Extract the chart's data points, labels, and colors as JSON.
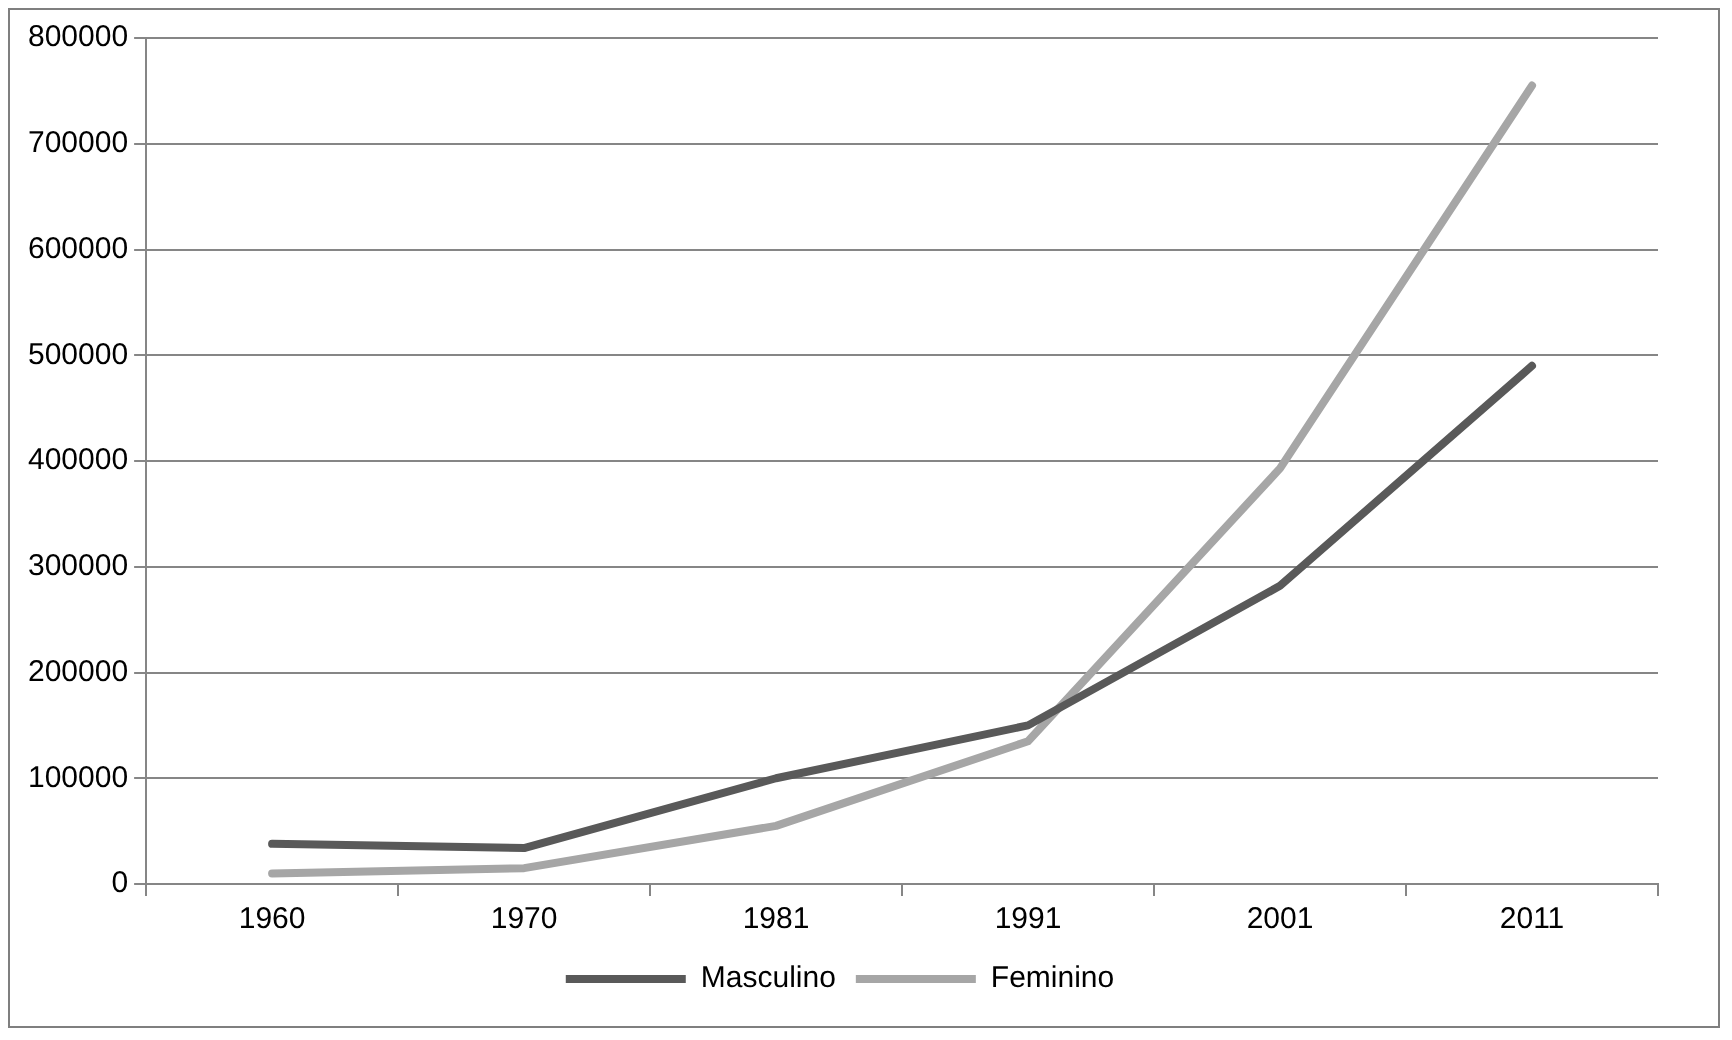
{
  "chart_data": {
    "type": "line",
    "categories": [
      "1960",
      "1970",
      "1981",
      "1991",
      "2001",
      "2011"
    ],
    "series": [
      {
        "name": "Masculino",
        "color": "#595959",
        "values": [
          38000,
          34000,
          100000,
          150000,
          282000,
          490000
        ]
      },
      {
        "name": "Feminino",
        "color": "#a6a6a6",
        "values": [
          10000,
          15000,
          55000,
          135000,
          393000,
          755000
        ]
      }
    ],
    "ylim": [
      0,
      800000
    ],
    "yticks": [
      0,
      100000,
      200000,
      300000,
      400000,
      500000,
      600000,
      700000,
      800000
    ],
    "grid": "y",
    "legend": "bottom",
    "marker": "none",
    "line_style": "solid"
  }
}
